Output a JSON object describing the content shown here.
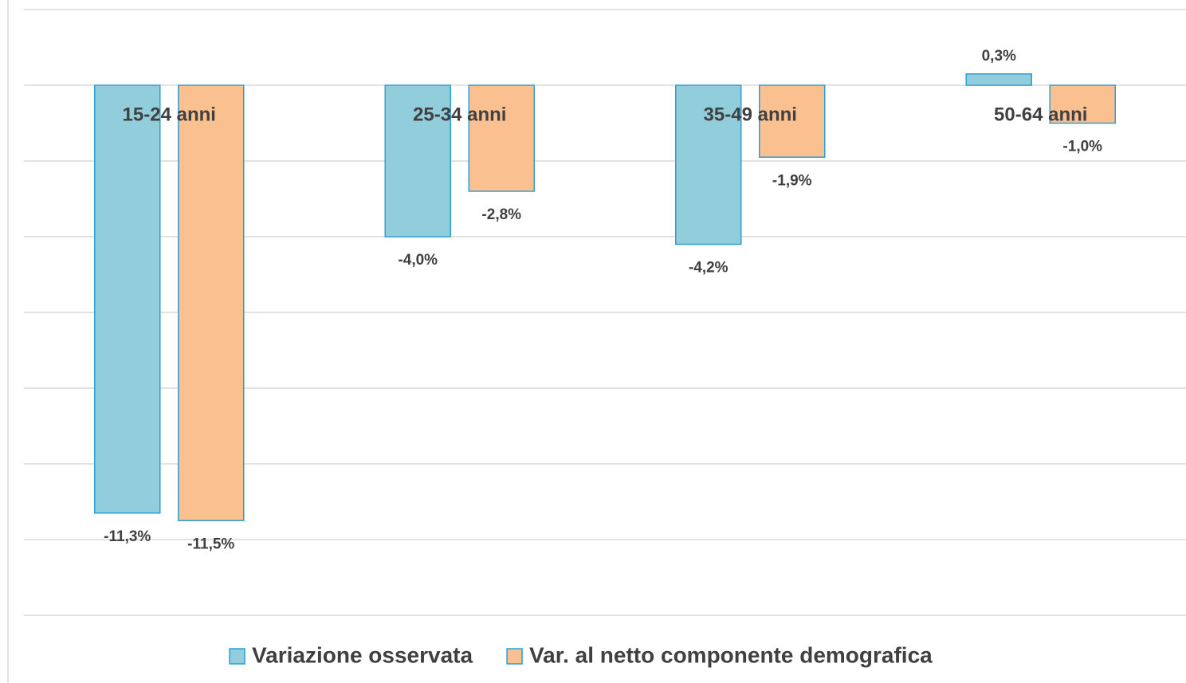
{
  "chart_data": {
    "type": "bar",
    "categories": [
      "15-24 anni",
      "25-34 anni",
      "35-49 anni",
      "50-64 anni"
    ],
    "series": [
      {
        "name": "Variazione osservata",
        "color": "#92cddc",
        "values": [
          -11.3,
          -4.0,
          -4.2,
          0.3
        ],
        "value_labels": [
          "-11,3%",
          "-4,0%",
          "-4,2%",
          "0,3%"
        ]
      },
      {
        "name": "Var. al netto componente demografica",
        "color": "#fac090",
        "values": [
          -11.5,
          -2.8,
          -1.9,
          -1.0
        ],
        "value_labels": [
          "-11,5%",
          "-2,8%",
          "-1,9%",
          "-1,0%"
        ]
      }
    ],
    "ylim": [
      -14,
      2
    ],
    "yticks": [
      -14,
      -12,
      -10,
      -8,
      -6,
      -4,
      -2,
      0,
      2
    ],
    "grid": true,
    "legend": "bottom"
  }
}
